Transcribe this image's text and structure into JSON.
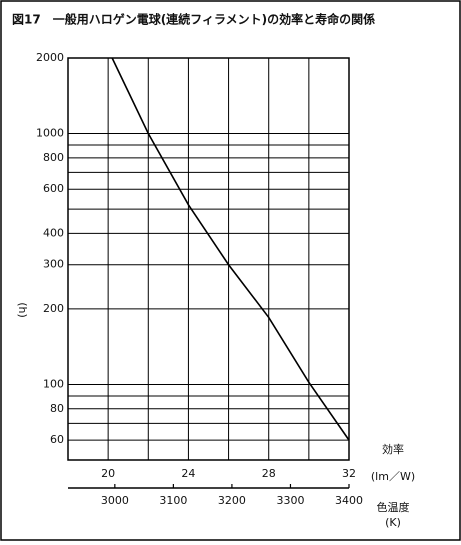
{
  "chart_data": {
    "type": "line",
    "title": "図17　一般用ハロゲン電球(連続フィラメント)の効率と寿命の関係",
    "y_label": "(h)",
    "x_label": "効率",
    "x_unit": "(lm／W)",
    "x2_label": "色温度",
    "x2_unit": "(K)",
    "x": [
      20.2,
      22,
      24,
      26,
      28,
      30,
      32
    ],
    "series": [
      {
        "values": [
          2000,
          1000,
          520,
          300,
          185,
          102,
          60
        ],
        "color": "#000000"
      }
    ],
    "xlim": [
      18,
      32
    ],
    "xticks": [
      20,
      24,
      28,
      32
    ],
    "xgrid": [
      18,
      20,
      22,
      24,
      26,
      28,
      30,
      32
    ],
    "x2lim": [
      2920,
      3400
    ],
    "x2ticks": [
      3000,
      3100,
      3200,
      3300,
      3400
    ],
    "ylim": [
      50,
      2000
    ],
    "ylog": true,
    "yticks": [
      60,
      80,
      100,
      200,
      300,
      400,
      600,
      800,
      1000,
      2000
    ],
    "ygrid": [
      60,
      70,
      80,
      90,
      100,
      200,
      300,
      400,
      500,
      600,
      700,
      800,
      900,
      1000,
      2000
    ],
    "grid": true
  }
}
